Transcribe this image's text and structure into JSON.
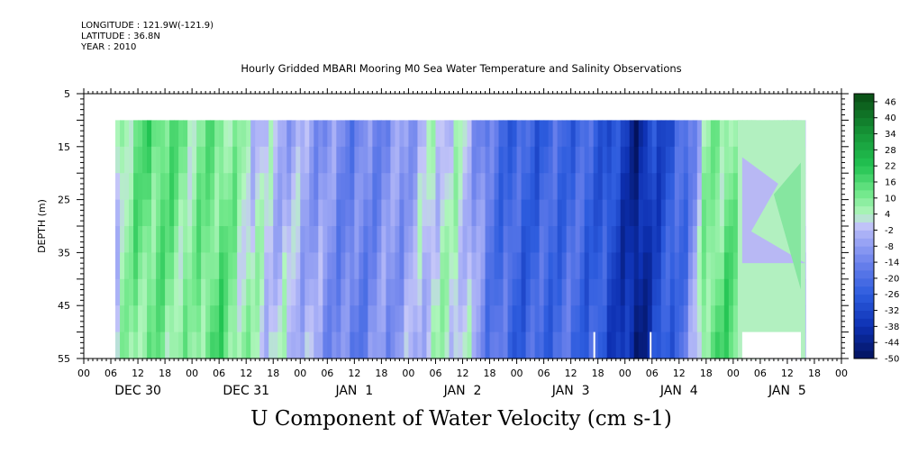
{
  "header": {
    "longitude": "LONGITUDE : 121.9W(-121.9)",
    "latitude": "LATITUDE : 36.8N",
    "year": "YEAR : 2010"
  },
  "chart_data": {
    "type": "heatmap",
    "title": "Hourly Gridded MBARI Mooring M0 Sea Water Temperature and Salinity Observations",
    "xlabel": "U Component of Water Velocity (cm s-1)",
    "ylabel": "DEPTH (m)",
    "ylim": [
      55,
      5
    ],
    "yticks": [
      "5",
      "15",
      "25",
      "35",
      "45",
      "55"
    ],
    "xtick_hours": [
      "00",
      "06",
      "12",
      "18",
      "00",
      "06",
      "12",
      "18",
      "00",
      "06",
      "12",
      "18",
      "00",
      "06",
      "12",
      "18",
      "00",
      "06",
      "12",
      "18",
      "00",
      "06",
      "12",
      "18",
      "00",
      "06",
      "12",
      "18",
      "00"
    ],
    "day_labels": [
      "DEC 30",
      "DEC 31",
      "JAN  1",
      "JAN  2",
      "JAN  3",
      "JAN  4",
      "JAN  5"
    ],
    "colorbar_ticks": [
      "46",
      "40",
      "34",
      "28",
      "22",
      "16",
      "10",
      "4",
      "-2",
      "-8",
      "-14",
      "-20",
      "-26",
      "-32",
      "-38",
      "-44",
      "-50"
    ],
    "colorbar_range": [
      -50,
      49
    ],
    "colors": {
      "strong_positive": "#0a4d14",
      "positive": "#22c04e",
      "weak_positive": "#a6f0b4",
      "near_zero": "#c6c6f6",
      "negative": "#5a78ea",
      "strong_negative": "#031a6a"
    },
    "data_hours_range": [
      7,
      160
    ],
    "data_depth_range": [
      10,
      55
    ],
    "u_profile": [
      [
        7,
        2,
        2
      ],
      [
        12,
        14,
        10
      ],
      [
        18,
        16,
        10
      ],
      [
        24,
        8,
        6
      ],
      [
        26,
        10,
        12
      ],
      [
        30,
        12,
        16
      ],
      [
        36,
        3,
        6
      ],
      [
        42,
        -3,
        1
      ],
      [
        48,
        -6,
        -1
      ],
      [
        54,
        -10,
        -10
      ],
      [
        60,
        -14,
        -16
      ],
      [
        66,
        -12,
        -10
      ],
      [
        72,
        -8,
        -6
      ],
      [
        78,
        2,
        4
      ],
      [
        84,
        1,
        3
      ],
      [
        90,
        -18,
        -16
      ],
      [
        96,
        -24,
        -24
      ],
      [
        102,
        -24,
        -22
      ],
      [
        108,
        -22,
        -20
      ],
      [
        114,
        -24,
        -26
      ],
      [
        120,
        -34,
        -38
      ],
      [
        123,
        -44,
        -46
      ],
      [
        126,
        -32,
        -34
      ],
      [
        130,
        -28,
        -24
      ],
      [
        134,
        -20,
        -14
      ],
      [
        138,
        6,
        14
      ],
      [
        144,
        10,
        16
      ],
      [
        150,
        8,
        12
      ],
      [
        156,
        -8,
        -6
      ],
      [
        160,
        -4,
        -6
      ]
    ],
    "gap_hours": [
      145,
      160
    ]
  }
}
